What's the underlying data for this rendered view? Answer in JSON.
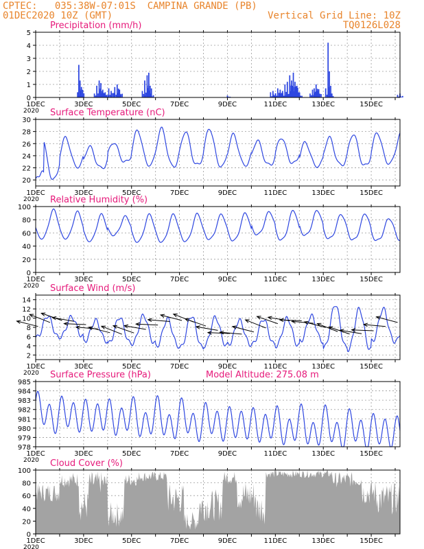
{
  "header": {
    "line1_left": "CPTEC:   035:38W-07:01S  CAMPINA GRANDE (PB)",
    "line2_left": "01DEC2020 10Z (GMT)",
    "line2_right": "Vertical Grid Line: 10Z",
    "line3_right": "TQ0126L028"
  },
  "colors": {
    "header": "#e8842b",
    "title": "#e6197a",
    "series": "#2d46e0",
    "cloud": "#a3a3a3",
    "arrow": "#000000",
    "grid": "#9a9a9a"
  },
  "x_axis": {
    "range_days": [
      0,
      15.2
    ],
    "tick_labels": [
      "1DEC",
      "3DEC",
      "5DEC",
      "7DEC",
      "9DEC",
      "11DEC",
      "13DEC",
      "15DEC"
    ],
    "tick_days": [
      0,
      2,
      4,
      6,
      8,
      10,
      12,
      14
    ],
    "year_label": "2020"
  },
  "chart_data": [
    {
      "type": "bar",
      "title": "Precipitation (mm/h)",
      "ylim": [
        0,
        5
      ],
      "yticks": [
        0,
        1,
        2,
        3,
        4,
        5
      ],
      "x_unit": "days since 01DEC2020 10Z",
      "events": [
        {
          "day": 1.75,
          "value": 0.4
        },
        {
          "day": 1.8,
          "value": 2.5
        },
        {
          "day": 1.85,
          "value": 1.3
        },
        {
          "day": 1.9,
          "value": 0.5
        },
        {
          "day": 2.45,
          "value": 0.3
        },
        {
          "day": 2.55,
          "value": 0.9
        },
        {
          "day": 2.65,
          "value": 1.3
        },
        {
          "day": 2.72,
          "value": 1.1
        },
        {
          "day": 2.8,
          "value": 0.6
        },
        {
          "day": 2.9,
          "value": 0.4
        },
        {
          "day": 3.05,
          "value": 0.7
        },
        {
          "day": 3.15,
          "value": 0.5
        },
        {
          "day": 3.3,
          "value": 0.8
        },
        {
          "day": 3.4,
          "value": 1.0
        },
        {
          "day": 3.5,
          "value": 0.6
        },
        {
          "day": 4.45,
          "value": 0.5
        },
        {
          "day": 4.55,
          "value": 1.3
        },
        {
          "day": 4.65,
          "value": 1.7
        },
        {
          "day": 4.72,
          "value": 1.9
        },
        {
          "day": 4.8,
          "value": 0.3
        },
        {
          "day": 8.0,
          "value": 0.15
        },
        {
          "day": 9.8,
          "value": 0.4
        },
        {
          "day": 9.9,
          "value": 0.5
        },
        {
          "day": 10.0,
          "value": 0.3
        },
        {
          "day": 10.1,
          "value": 0.7
        },
        {
          "day": 10.2,
          "value": 0.6
        },
        {
          "day": 10.3,
          "value": 0.5
        },
        {
          "day": 10.4,
          "value": 1.0
        },
        {
          "day": 10.5,
          "value": 1.2
        },
        {
          "day": 10.6,
          "value": 1.7
        },
        {
          "day": 10.68,
          "value": 1.3
        },
        {
          "day": 10.75,
          "value": 1.9
        },
        {
          "day": 10.82,
          "value": 1.2
        },
        {
          "day": 10.9,
          "value": 0.9
        },
        {
          "day": 11.0,
          "value": 0.4
        },
        {
          "day": 11.45,
          "value": 0.3
        },
        {
          "day": 11.55,
          "value": 0.6
        },
        {
          "day": 11.62,
          "value": 0.7
        },
        {
          "day": 11.7,
          "value": 1.0
        },
        {
          "day": 11.8,
          "value": 0.5
        },
        {
          "day": 12.2,
          "value": 4.2
        },
        {
          "day": 12.25,
          "value": 0.8
        },
        {
          "day": 12.1,
          "value": 0.7
        },
        {
          "day": 12.3,
          "value": 0.2
        },
        {
          "day": 15.1,
          "value": 0.2
        },
        {
          "day": 15.2,
          "value": 0.3
        }
      ]
    },
    {
      "type": "line",
      "title": "Surface Temperature (nC)",
      "ylim": [
        19,
        30
      ],
      "yticks": [
        20,
        22,
        24,
        26,
        28,
        30
      ],
      "model": {
        "base": 20.2,
        "max": [
          27.3,
          27.0,
          25.5,
          26.2,
          28.2,
          28.5,
          28.0,
          28.5,
          27.5,
          26.5,
          27.0,
          26.2,
          27.0,
          27.6,
          27.8
        ],
        "min": [
          20.2,
          22.2,
          22.0,
          23.0,
          22.5,
          22.3,
          22.5,
          22.3,
          22.5,
          22.5,
          22.8,
          22.3,
          22.5,
          22.4,
          22.8
        ],
        "peak_phase": 0.25
      }
    },
    {
      "type": "line",
      "title": "Relative Humidity (%)",
      "ylim": [
        0,
        100
      ],
      "yticks": [
        0,
        20,
        40,
        60,
        80,
        100
      ],
      "model": {
        "max": [
          95,
          92,
          88,
          85,
          88,
          88,
          89,
          88,
          90,
          92,
          94,
          94,
          88,
          89,
          82
        ],
        "min": [
          52,
          52,
          48,
          57,
          47,
          47,
          48,
          51,
          49,
          58,
          50,
          57,
          52,
          50,
          49
        ],
        "min_phase": 0.25
      }
    },
    {
      "type": "line",
      "title": "Surface Wind (m/s)",
      "ylim": [
        1,
        15
      ],
      "yticks": [
        2,
        4,
        6,
        8,
        10,
        12,
        14
      ],
      "model": {
        "max": [
          10.5,
          10.3,
          9.5,
          10.2,
          10.6,
          9.8,
          10.5,
          10.2,
          9.5,
          9.8,
          10.0,
          10.5,
          13.0,
          12.0,
          12.0
        ],
        "min": [
          5.8,
          6.0,
          5.0,
          4.5,
          4.5,
          3.9,
          3.6,
          4.0,
          4.3,
          4.3,
          4.0,
          5.0,
          3.6,
          3.2,
          5.0
        ],
        "max_phase": 0.5
      },
      "arrows_every_days": 0.5,
      "arrow_direction": "from east-southeast (pointing west-northwest)"
    },
    {
      "type": "line",
      "title": "Surface Pressure (hPa)",
      "annotation": "Model Altitude: 275.08 m",
      "ylim": [
        978,
        985
      ],
      "yticks": [
        978,
        979,
        980,
        981,
        982,
        983,
        984,
        985
      ],
      "model": {
        "trend_start": 981.6,
        "trend_end": 979.5,
        "semidiurnal_amp": 1.6
      }
    },
    {
      "type": "area",
      "title": "Cloud Cover (%)",
      "ylim": [
        0,
        100
      ],
      "yticks": [
        0,
        20,
        40,
        60,
        80,
        100
      ],
      "segments": [
        {
          "from": 0.0,
          "to": 1.0,
          "level": 65,
          "jitter": 15
        },
        {
          "from": 1.0,
          "to": 1.8,
          "level": 85,
          "jitter": 12
        },
        {
          "from": 1.8,
          "to": 2.2,
          "level": 45,
          "jitter": 25
        },
        {
          "from": 2.2,
          "to": 3.0,
          "level": 80,
          "jitter": 18
        },
        {
          "from": 3.0,
          "to": 3.7,
          "level": 30,
          "jitter": 20
        },
        {
          "from": 3.7,
          "to": 4.3,
          "level": 85,
          "jitter": 10
        },
        {
          "from": 4.3,
          "to": 5.5,
          "level": 90,
          "jitter": 8
        },
        {
          "from": 5.5,
          "to": 6.2,
          "level": 55,
          "jitter": 25
        },
        {
          "from": 6.2,
          "to": 6.8,
          "level": 20,
          "jitter": 15
        },
        {
          "from": 6.8,
          "to": 7.8,
          "level": 45,
          "jitter": 25
        },
        {
          "from": 7.8,
          "to": 8.4,
          "level": 88,
          "jitter": 10
        },
        {
          "from": 8.4,
          "to": 9.2,
          "level": 60,
          "jitter": 25
        },
        {
          "from": 9.2,
          "to": 9.6,
          "level": 40,
          "jitter": 25
        },
        {
          "from": 9.6,
          "to": 12.4,
          "level": 94,
          "jitter": 6
        },
        {
          "from": 12.4,
          "to": 13.6,
          "level": 85,
          "jitter": 12
        },
        {
          "from": 13.6,
          "to": 14.2,
          "level": 65,
          "jitter": 20
        },
        {
          "from": 14.2,
          "to": 15.2,
          "level": 55,
          "jitter": 25
        }
      ]
    }
  ]
}
